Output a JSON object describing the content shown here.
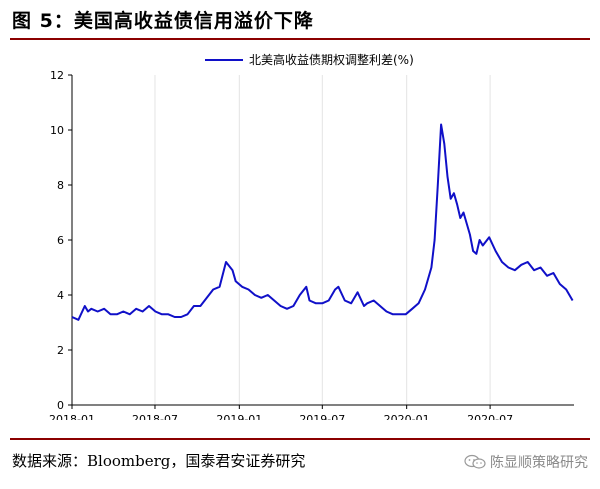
{
  "figure": {
    "title": "图 5：美国高收益债信用溢价下降",
    "source": "数据来源：Bloomberg，国泰君安证券研究",
    "watermark": "陈显顺策略研究",
    "watermark_icon": "wechat-icon"
  },
  "chart_data": {
    "type": "line",
    "legend_position": "top-center",
    "grid": "vertical",
    "line_color": "#1010c8",
    "ylim": [
      0,
      12
    ],
    "yticks": [
      0,
      2,
      4,
      6,
      8,
      10,
      12
    ],
    "xlim": [
      "2018-01-01",
      "2020-12-31"
    ],
    "xticks": [
      "2018-01",
      "2018-07",
      "2019-01",
      "2019-07",
      "2020-01",
      "2020-07"
    ],
    "series": [
      {
        "name": "北美高收益债期权调整利差(%)",
        "x": [
          "2018-01-01",
          "2018-01-15",
          "2018-01-29",
          "2018-02-05",
          "2018-02-12",
          "2018-02-26",
          "2018-03-12",
          "2018-03-26",
          "2018-04-09",
          "2018-04-23",
          "2018-05-07",
          "2018-05-21",
          "2018-06-04",
          "2018-06-18",
          "2018-07-02",
          "2018-07-16",
          "2018-07-30",
          "2018-08-13",
          "2018-08-27",
          "2018-09-10",
          "2018-09-24",
          "2018-10-08",
          "2018-10-22",
          "2018-11-05",
          "2018-11-19",
          "2018-12-03",
          "2018-12-17",
          "2018-12-24",
          "2019-01-07",
          "2019-01-21",
          "2019-02-04",
          "2019-02-18",
          "2019-03-04",
          "2019-03-18",
          "2019-04-01",
          "2019-04-15",
          "2019-04-29",
          "2019-05-13",
          "2019-05-27",
          "2019-06-03",
          "2019-06-17",
          "2019-07-01",
          "2019-07-15",
          "2019-07-29",
          "2019-08-05",
          "2019-08-19",
          "2019-09-02",
          "2019-09-16",
          "2019-09-30",
          "2019-10-07",
          "2019-10-21",
          "2019-11-04",
          "2019-11-18",
          "2019-12-02",
          "2019-12-16",
          "2019-12-30",
          "2020-01-13",
          "2020-01-27",
          "2020-02-10",
          "2020-02-24",
          "2020-03-02",
          "2020-03-09",
          "2020-03-16",
          "2020-03-23",
          "2020-03-30",
          "2020-04-06",
          "2020-04-13",
          "2020-04-20",
          "2020-04-27",
          "2020-05-04",
          "2020-05-11",
          "2020-05-18",
          "2020-05-25",
          "2020-06-01",
          "2020-06-08",
          "2020-06-15",
          "2020-06-29",
          "2020-07-13",
          "2020-07-27",
          "2020-08-10",
          "2020-08-24",
          "2020-09-07",
          "2020-09-21",
          "2020-10-05",
          "2020-10-19",
          "2020-11-02",
          "2020-11-16",
          "2020-11-30",
          "2020-12-14",
          "2020-12-28"
        ],
        "values": [
          3.2,
          3.1,
          3.6,
          3.4,
          3.5,
          3.4,
          3.5,
          3.3,
          3.3,
          3.4,
          3.3,
          3.5,
          3.4,
          3.6,
          3.4,
          3.3,
          3.3,
          3.2,
          3.2,
          3.3,
          3.6,
          3.6,
          3.9,
          4.2,
          4.3,
          5.2,
          4.9,
          4.5,
          4.3,
          4.2,
          4.0,
          3.9,
          4.0,
          3.8,
          3.6,
          3.5,
          3.6,
          4.0,
          4.3,
          3.8,
          3.7,
          3.7,
          3.8,
          4.2,
          4.3,
          3.8,
          3.7,
          4.1,
          3.6,
          3.7,
          3.8,
          3.6,
          3.4,
          3.3,
          3.3,
          3.3,
          3.5,
          3.7,
          4.2,
          5.0,
          6.0,
          8.0,
          10.2,
          9.5,
          8.3,
          7.5,
          7.7,
          7.3,
          6.8,
          7.0,
          6.6,
          6.2,
          5.6,
          5.5,
          6.0,
          5.8,
          6.1,
          5.6,
          5.2,
          5.0,
          4.9,
          5.1,
          5.2,
          4.9,
          5.0,
          4.7,
          4.8,
          4.4,
          4.2,
          3.8
        ]
      }
    ]
  }
}
